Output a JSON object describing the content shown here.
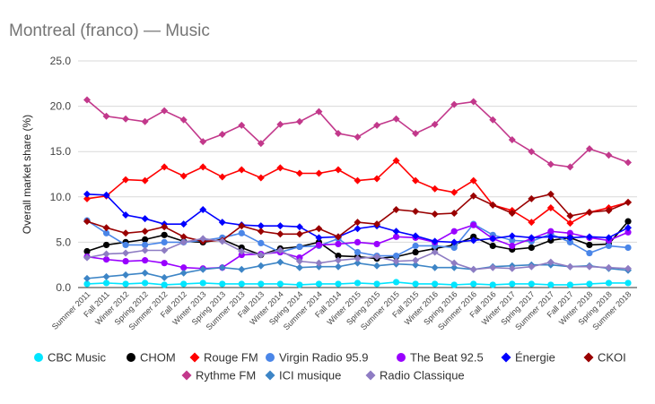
{
  "chart_data": {
    "type": "line",
    "title": "Montreal (franco) — Music",
    "xlabel": "",
    "ylabel": "Overall market share (%)",
    "ylim": [
      0,
      25
    ],
    "yticks": [
      "0.0",
      "5.0",
      "10.0",
      "15.0",
      "20.0",
      "25.0"
    ],
    "grid": true,
    "legend_position": "bottom",
    "categories": [
      "Summer 2011",
      "Fall 2011",
      "Winter 2012",
      "Spring 2012",
      "Summer 2012",
      "Fall 2012",
      "Winter 2013",
      "Spring 2013",
      "Summer 2013",
      "Fall 2013",
      "Winter 2014",
      "Spring 2014",
      "Summer 2014",
      "Fall 2014",
      "Winter 2015",
      "Spring 2015",
      "Summer 2015",
      "Fall 2015",
      "Winter 2016",
      "Spring 2016",
      "Summer 2016",
      "Fall 2016",
      "Winter 2017",
      "Spring 2017",
      "Summer 2017",
      "Fall 2017",
      "Winter 2018",
      "Spring 2018",
      "Summer 2018"
    ],
    "series": [
      {
        "name": "CBC Music",
        "color": "#00e5ff",
        "marker": "circle",
        "values": [
          0.4,
          0.5,
          0.4,
          0.5,
          0.3,
          0.4,
          0.5,
          0.4,
          0.4,
          0.4,
          0.4,
          0.3,
          0.4,
          0.4,
          0.5,
          0.4,
          0.6,
          0.4,
          0.4,
          0.3,
          0.4,
          0.3,
          0.4,
          0.4,
          0.3,
          0.3,
          0.4,
          0.5,
          0.5
        ]
      },
      {
        "name": "CHOM",
        "color": "#000000",
        "marker": "circle",
        "values": [
          4.0,
          4.7,
          5.0,
          5.3,
          5.8,
          5.1,
          5.0,
          5.3,
          4.4,
          3.6,
          4.3,
          4.5,
          5.0,
          3.5,
          3.4,
          3.2,
          3.4,
          3.9,
          4.3,
          4.7,
          5.6,
          4.6,
          4.2,
          4.4,
          5.2,
          5.5,
          4.7,
          4.8,
          7.3
        ]
      },
      {
        "name": "Rouge FM",
        "color": "#ff0000",
        "marker": "diamond",
        "values": [
          9.8,
          10.1,
          11.9,
          11.8,
          13.3,
          12.3,
          13.3,
          12.2,
          13.0,
          12.1,
          13.2,
          12.6,
          12.6,
          13.0,
          11.8,
          12.0,
          14.0,
          11.8,
          10.9,
          10.5,
          11.8,
          9.1,
          8.5,
          7.2,
          8.8,
          7.1,
          8.3,
          8.8,
          9.4
        ]
      },
      {
        "name": "Virgin Radio 95.9",
        "color": "#4a86e8",
        "marker": "circle",
        "values": [
          7.4,
          6.0,
          4.7,
          4.7,
          5.0,
          5.0,
          5.2,
          5.5,
          6.0,
          4.9,
          3.9,
          4.5,
          4.6,
          5.4,
          3.9,
          3.5,
          3.5,
          4.6,
          4.6,
          4.4,
          7.0,
          5.8,
          5.2,
          5.1,
          5.9,
          5.0,
          3.8,
          4.6,
          4.4
        ]
      },
      {
        "name": "The Beat 92.5",
        "color": "#9900ff",
        "marker": "circle",
        "values": [
          3.4,
          3.1,
          2.9,
          3.0,
          2.7,
          2.2,
          2.1,
          2.2,
          3.6,
          3.7,
          3.9,
          3.3,
          4.7,
          4.8,
          5.0,
          4.8,
          5.6,
          5.5,
          5.0,
          6.2,
          6.9,
          5.4,
          4.6,
          5.4,
          6.2,
          6.0,
          5.5,
          5.2,
          6.1
        ]
      },
      {
        "name": "Énergie",
        "color": "#0000ff",
        "marker": "diamond",
        "values": [
          10.3,
          10.2,
          8.0,
          7.6,
          7.0,
          7.0,
          8.6,
          7.2,
          6.9,
          6.8,
          6.8,
          6.7,
          5.5,
          5.6,
          6.5,
          6.8,
          6.2,
          5.7,
          5.1,
          5.0,
          5.2,
          5.4,
          5.7,
          5.5,
          5.6,
          5.5,
          5.6,
          5.5,
          6.6
        ]
      },
      {
        "name": "CKOI",
        "color": "#990000",
        "marker": "diamond",
        "values": [
          7.3,
          6.6,
          6.0,
          6.2,
          6.7,
          5.6,
          5.1,
          5.2,
          6.8,
          6.2,
          5.9,
          5.9,
          6.5,
          5.6,
          7.2,
          7.0,
          8.6,
          8.4,
          8.1,
          8.2,
          10.1,
          9.1,
          8.2,
          9.8,
          10.3,
          7.9,
          8.3,
          8.5,
          9.4
        ]
      },
      {
        "name": "Rythme FM",
        "color": "#c2388b",
        "marker": "diamond",
        "values": [
          20.7,
          18.9,
          18.6,
          18.3,
          19.5,
          18.5,
          16.1,
          16.9,
          17.9,
          15.9,
          18.0,
          18.3,
          19.4,
          17.0,
          16.6,
          17.9,
          18.6,
          17.0,
          18.0,
          20.2,
          20.5,
          18.5,
          16.3,
          15.0,
          13.6,
          13.3,
          15.3,
          14.6,
          13.8
        ]
      },
      {
        "name": "ICI musique",
        "color": "#3d85c6",
        "marker": "diamond",
        "values": [
          1.0,
          1.2,
          1.4,
          1.6,
          1.1,
          1.6,
          2.0,
          2.2,
          2.0,
          2.4,
          2.8,
          2.2,
          2.3,
          2.3,
          2.7,
          2.4,
          2.6,
          2.5,
          2.2,
          2.2,
          2.0,
          2.3,
          2.4,
          2.5,
          2.5,
          2.3,
          2.4,
          2.1,
          1.9
        ]
      },
      {
        "name": "Radio Classique",
        "color": "#8e7cc3",
        "marker": "diamond",
        "values": [
          3.3,
          3.7,
          3.8,
          4.1,
          4.1,
          5.0,
          5.4,
          5.1,
          4.0,
          3.6,
          4.1,
          2.9,
          2.7,
          3.0,
          3.2,
          3.4,
          2.9,
          3.0,
          3.9,
          2.7,
          2.0,
          2.2,
          2.1,
          2.3,
          2.8,
          2.3,
          2.3,
          2.2,
          2.1
        ]
      }
    ]
  }
}
